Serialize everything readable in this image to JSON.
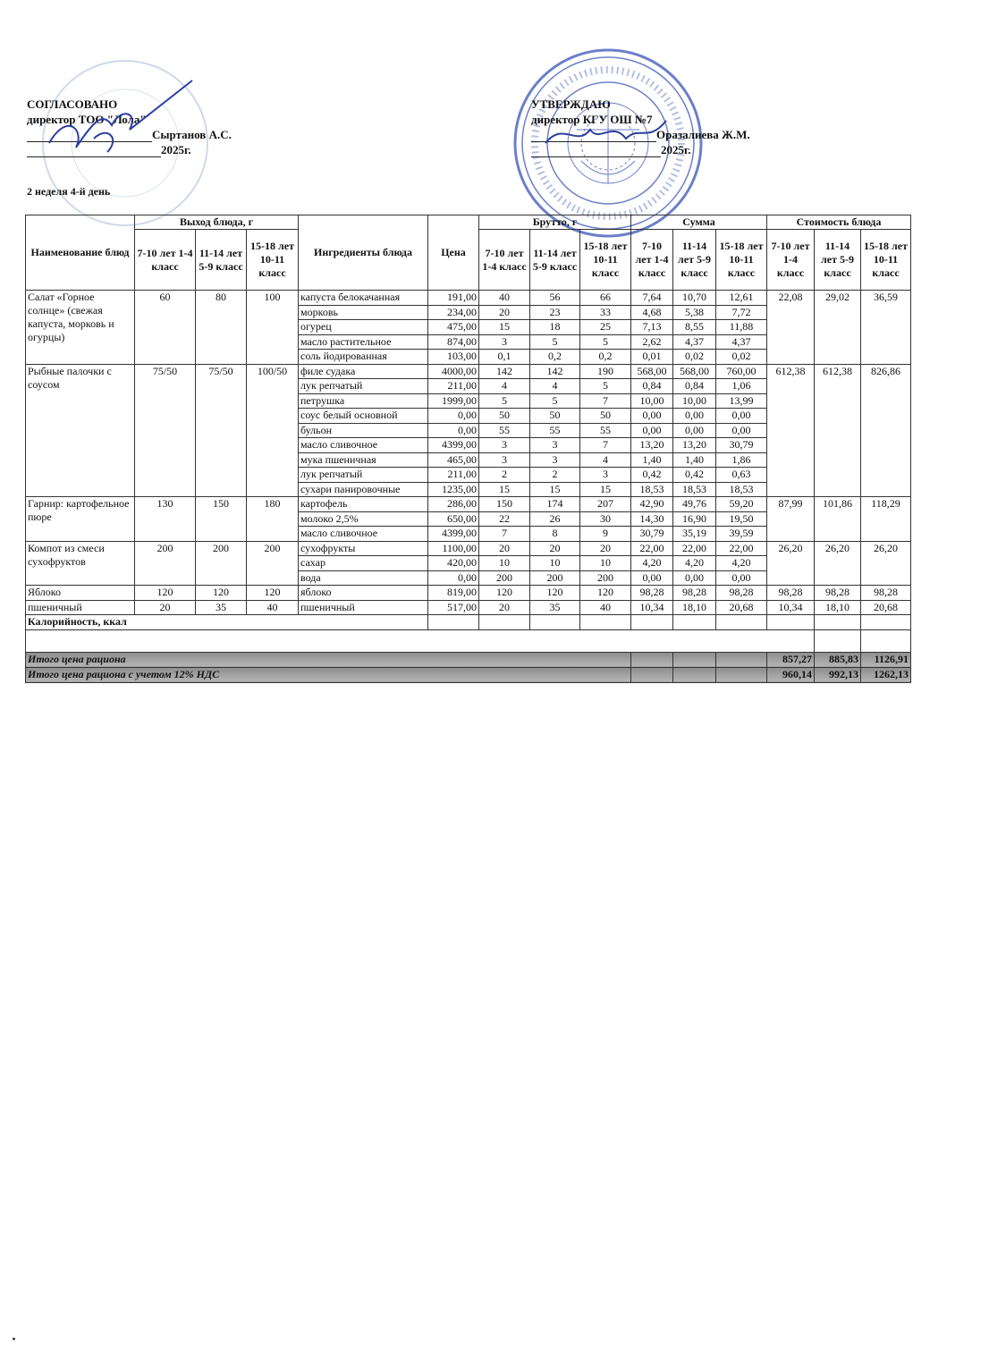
{
  "left_block": {
    "title": "СОГЛАСОВАНО",
    "position": "директор ТОО \"Лола\"",
    "name": "Сыртанов А.С.",
    "year": "2025г."
  },
  "right_block": {
    "title": "УТВЕРЖДАЮ",
    "position": "директор КГУ ОШ №7",
    "name": "Оразалиева Ж.М.",
    "year": "2025г."
  },
  "day_label": "2 неделя 4-й день",
  "colors": {
    "stamp": "#3a55b8",
    "signature": "#2b3fa0",
    "total_row": "#a0a0a0"
  },
  "table": {
    "headers": {
      "dish_name": "Наименование блюд",
      "output": "Выход блюда, г",
      "ingredients": "Ингредиенты блюда",
      "price": "Цена",
      "brutto": "Брутто, г",
      "sum": "Сумма",
      "cost": "Стоимость блюда",
      "age_groups": [
        "7-10 лет 1-4 класс",
        "11-14 лет 5-9 класс",
        "15-18 лет 10-11 класс"
      ]
    },
    "dishes": [
      {
        "name": "Салат «Горное солнце» (свежая капуста, морковь и огурцы)",
        "output": [
          "60",
          "80",
          "100"
        ],
        "cost": [
          "22,08",
          "29,02",
          "36,59"
        ],
        "ingredients": [
          {
            "name": "капуста белокачанная",
            "price": "191,00",
            "brutto": [
              "40",
              "56",
              "66"
            ],
            "sum": [
              "7,64",
              "10,70",
              "12,61"
            ]
          },
          {
            "name": "морковь",
            "price": "234,00",
            "brutto": [
              "20",
              "23",
              "33"
            ],
            "sum": [
              "4,68",
              "5,38",
              "7,72"
            ]
          },
          {
            "name": "огурец",
            "price": "475,00",
            "brutto": [
              "15",
              "18",
              "25"
            ],
            "sum": [
              "7,13",
              "8,55",
              "11,88"
            ]
          },
          {
            "name": "масло растительное",
            "price": "874,00",
            "brutto": [
              "3",
              "5",
              "5"
            ],
            "sum": [
              "2,62",
              "4,37",
              "4,37"
            ]
          },
          {
            "name": "соль йодированная",
            "price": "103,00",
            "brutto": [
              "0,1",
              "0,2",
              "0,2"
            ],
            "sum": [
              "0,01",
              "0,02",
              "0,02"
            ]
          }
        ]
      },
      {
        "name": "Рыбные палочки с соусом",
        "output": [
          "75/50",
          "75/50",
          "100/50"
        ],
        "cost": [
          "612,38",
          "612,38",
          "826,86"
        ],
        "ingredients": [
          {
            "name": "филе судака",
            "price": "4000,00",
            "brutto": [
              "142",
              "142",
              "190"
            ],
            "sum": [
              "568,00",
              "568,00",
              "760,00"
            ]
          },
          {
            "name": "лук репчатый",
            "price": "211,00",
            "brutto": [
              "4",
              "4",
              "5"
            ],
            "sum": [
              "0,84",
              "0,84",
              "1,06"
            ]
          },
          {
            "name": "петрушка",
            "price": "1999,00",
            "brutto": [
              "5",
              "5",
              "7"
            ],
            "sum": [
              "10,00",
              "10,00",
              "13,99"
            ]
          },
          {
            "name": "соус белый основной",
            "price": "0,00",
            "brutto": [
              "50",
              "50",
              "50"
            ],
            "sum": [
              "0,00",
              "0,00",
              "0,00"
            ]
          },
          {
            "name": "бульон",
            "price": "0,00",
            "brutto": [
              "55",
              "55",
              "55"
            ],
            "sum": [
              "0,00",
              "0,00",
              "0,00"
            ]
          },
          {
            "name": "масло сливочное",
            "price": "4399,00",
            "brutto": [
              "3",
              "3",
              "7"
            ],
            "sum": [
              "13,20",
              "13,20",
              "30,79"
            ]
          },
          {
            "name": "мука пшеничная",
            "price": "465,00",
            "brutto": [
              "3",
              "3",
              "4"
            ],
            "sum": [
              "1,40",
              "1,40",
              "1,86"
            ]
          },
          {
            "name": "лук репчатый",
            "price": "211,00",
            "brutto": [
              "2",
              "2",
              "3"
            ],
            "sum": [
              "0,42",
              "0,42",
              "0,63"
            ]
          },
          {
            "name": "сухари панировочные",
            "price": "1235,00",
            "brutto": [
              "15",
              "15",
              "15"
            ],
            "sum": [
              "18,53",
              "18,53",
              "18,53"
            ]
          }
        ]
      },
      {
        "name": "Гарнир: картофельное пюре",
        "output": [
          "130",
          "150",
          "180"
        ],
        "cost": [
          "87,99",
          "101,86",
          "118,29"
        ],
        "ingredients": [
          {
            "name": "картофель",
            "price": "286,00",
            "brutto": [
              "150",
              "174",
              "207"
            ],
            "sum": [
              "42,90",
              "49,76",
              "59,20"
            ]
          },
          {
            "name": "молоко 2,5%",
            "price": "650,00",
            "brutto": [
              "22",
              "26",
              "30"
            ],
            "sum": [
              "14,30",
              "16,90",
              "19,50"
            ]
          },
          {
            "name": "масло сливочное",
            "price": "4399,00",
            "brutto": [
              "7",
              "8",
              "9"
            ],
            "sum": [
              "30,79",
              "35,19",
              "39,59"
            ]
          }
        ]
      },
      {
        "name": "Компот из смеси сухофруктов",
        "output": [
          "200",
          "200",
          "200"
        ],
        "cost": [
          "26,20",
          "26,20",
          "26,20"
        ],
        "ingredients": [
          {
            "name": "сухофрукты",
            "price": "1100,00",
            "brutto": [
              "20",
              "20",
              "20"
            ],
            "sum": [
              "22,00",
              "22,00",
              "22,00"
            ]
          },
          {
            "name": "сахар",
            "price": "420,00",
            "brutto": [
              "10",
              "10",
              "10"
            ],
            "sum": [
              "4,20",
              "4,20",
              "4,20"
            ]
          },
          {
            "name": "вода",
            "price": "0,00",
            "brutto": [
              "200",
              "200",
              "200"
            ],
            "sum": [
              "0,00",
              "0,00",
              "0,00"
            ]
          }
        ]
      },
      {
        "name": "Яблоко",
        "output": [
          "120",
          "120",
          "120"
        ],
        "cost": [
          "98,28",
          "98,28",
          "98,28"
        ],
        "ingredients": [
          {
            "name": "яблоко",
            "price": "819,00",
            "brutto": [
              "120",
              "120",
              "120"
            ],
            "sum": [
              "98,28",
              "98,28",
              "98,28"
            ]
          }
        ]
      },
      {
        "name": "пшеничный",
        "output": [
          "20",
          "35",
          "40"
        ],
        "cost": [
          "10,34",
          "18,10",
          "20,68"
        ],
        "ingredients": [
          {
            "name": "пшеничный",
            "price": "517,00",
            "brutto": [
              "20",
              "35",
              "40"
            ],
            "sum": [
              "10,34",
              "18,10",
              "20,68"
            ]
          }
        ]
      }
    ],
    "calorie_label": "Калорийность, ккал",
    "totals": [
      {
        "label": "Итого цена рациона",
        "values": [
          "857,27",
          "885,83",
          "1126,91"
        ]
      },
      {
        "label": "Итого цена рациона с учетом 12% НДС",
        "values": [
          "960,14",
          "992,13",
          "1262,13"
        ]
      }
    ]
  }
}
